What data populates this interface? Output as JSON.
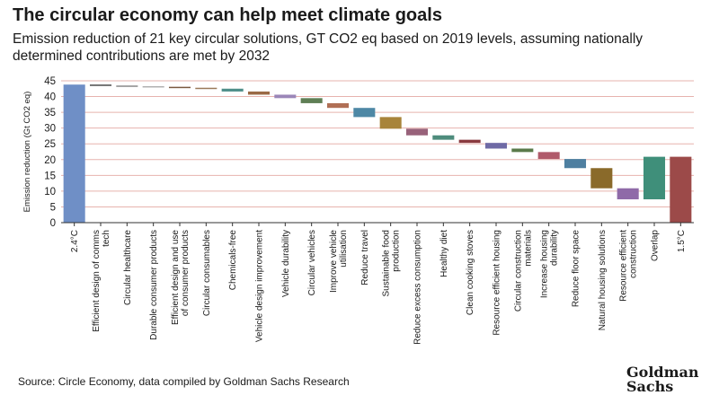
{
  "header": {
    "title": "The circular economy can help meet climate goals",
    "subtitle": "Emission reduction of 21 key circular solutions, GT CO2 eq based on 2019 levels, assuming nationally determined contributions are met by 2032"
  },
  "footer": {
    "source": "Source: Circle Economy, data compiled by Goldman Sachs Research",
    "logo_line1": "Goldman",
    "logo_line2": "Sachs"
  },
  "colors": {
    "start_bar": "#6f8fc6",
    "end_bar": "#9c4a49",
    "gridline": "#e7b3ae",
    "axis": "#333333"
  },
  "chart_data": {
    "type": "bar",
    "subtype": "waterfall",
    "ylabel": "Emission reduction (Gt CO2 eq)",
    "ylim": [
      0,
      45
    ],
    "yticks": [
      0,
      5,
      10,
      15,
      20,
      25,
      30,
      35,
      40,
      45
    ],
    "grid": true,
    "categories": [
      "2.4°C",
      "Efficient design of comms tech",
      "Circular healthcare",
      "Durable consumer products",
      "Efficient design and use of consumer products",
      "Circular consumables",
      "Chemicals-free",
      "Vehicle design improvement",
      "Vehicle durability",
      "Circular vehicles",
      "Improve vehicle utilisation",
      "Reduce travel",
      "Sustainable food production",
      "Reduce excess consumption",
      "Healthy diet",
      "Clean cooking stoves",
      "Resource efficient housing",
      "Circular construction materials",
      "Increase housing durability",
      "Reduce floor space",
      "Natural housing solutions",
      "Resource efficient construction",
      "Overlap",
      "1.5°C"
    ],
    "bars": [
      {
        "low": 0,
        "high": 43.8,
        "color": "#6f8fc6"
      },
      {
        "low": 43.5,
        "high": 43.8,
        "color": "#4a4a4a"
      },
      {
        "low": 43.3,
        "high": 43.5,
        "color": "#8a8a8a"
      },
      {
        "low": 43.1,
        "high": 43.3,
        "color": "#b0b0b0"
      },
      {
        "low": 42.8,
        "high": 43.1,
        "color": "#7a5a40"
      },
      {
        "low": 42.5,
        "high": 42.8,
        "color": "#9a7a5a"
      },
      {
        "low": 41.6,
        "high": 42.5,
        "color": "#4f8f8a"
      },
      {
        "low": 40.6,
        "high": 41.6,
        "color": "#9a6a45"
      },
      {
        "low": 39.5,
        "high": 40.6,
        "color": "#9b86b8"
      },
      {
        "low": 37.9,
        "high": 39.5,
        "color": "#5f7f55"
      },
      {
        "low": 36.4,
        "high": 37.9,
        "color": "#b06f55"
      },
      {
        "low": 33.5,
        "high": 36.4,
        "color": "#4e88a5"
      },
      {
        "low": 29.8,
        "high": 33.5,
        "color": "#a8843a"
      },
      {
        "low": 27.7,
        "high": 29.8,
        "color": "#98627a"
      },
      {
        "low": 26.3,
        "high": 27.7,
        "color": "#4e8c7c"
      },
      {
        "low": 25.3,
        "high": 26.3,
        "color": "#8a3a3f"
      },
      {
        "low": 23.5,
        "high": 25.3,
        "color": "#6f6aa5"
      },
      {
        "low": 22.4,
        "high": 23.5,
        "color": "#5a7a4a"
      },
      {
        "low": 20.2,
        "high": 22.4,
        "color": "#b05a6a"
      },
      {
        "low": 17.3,
        "high": 20.2,
        "color": "#4e7fa0"
      },
      {
        "low": 10.9,
        "high": 17.3,
        "color": "#8a6a2a"
      },
      {
        "low": 7.4,
        "high": 10.9,
        "color": "#8f6aa8"
      },
      {
        "low": 7.4,
        "high": 20.9,
        "color": "#3f8f7a"
      },
      {
        "low": 0,
        "high": 20.9,
        "color": "#9c4a49"
      }
    ]
  }
}
